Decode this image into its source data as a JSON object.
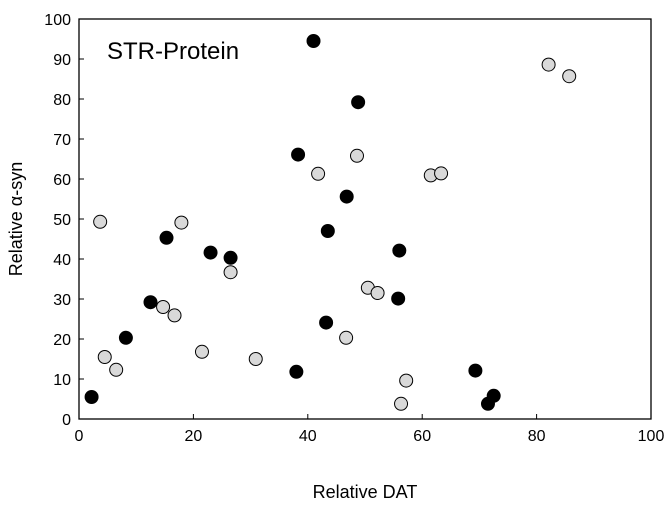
{
  "chart_data": {
    "type": "scatter",
    "title": "",
    "annotation": "STR-Protein",
    "xlabel": "Relative DAT",
    "ylabel": "Relative α-syn",
    "xlim": [
      0,
      100
    ],
    "ylim": [
      0,
      100
    ],
    "xticks": [
      "0",
      "20",
      "40",
      "60",
      "80",
      "100"
    ],
    "yticks": [
      "0",
      "10",
      "20",
      "30",
      "40",
      "50",
      "60",
      "70",
      "80",
      "90",
      "100"
    ],
    "grid": false,
    "colors": {
      "series_a": "#000000",
      "series_b": "#d9d9d9",
      "outline": "#000000"
    },
    "series": [
      {
        "points": [
          [
            2.2,
            5.5
          ],
          [
            8.2,
            20.3
          ],
          [
            12.5,
            29.2
          ],
          [
            15.3,
            45.3
          ],
          [
            23.0,
            41.6
          ],
          [
            26.5,
            40.3
          ],
          [
            38.0,
            11.8
          ],
          [
            38.3,
            66.1
          ],
          [
            41.0,
            94.5
          ],
          [
            43.2,
            24.1
          ],
          [
            43.5,
            47.0
          ],
          [
            46.8,
            55.6
          ],
          [
            48.8,
            79.2
          ],
          [
            55.8,
            30.1
          ],
          [
            56.0,
            42.1
          ],
          [
            69.3,
            12.1
          ],
          [
            71.5,
            3.8
          ],
          [
            72.5,
            5.8
          ]
        ]
      },
      {
        "points": [
          [
            3.7,
            49.3
          ],
          [
            4.5,
            15.5
          ],
          [
            6.5,
            12.3
          ],
          [
            14.7,
            28.0
          ],
          [
            16.7,
            25.9
          ],
          [
            17.9,
            49.1
          ],
          [
            21.5,
            16.8
          ],
          [
            26.5,
            36.7
          ],
          [
            30.9,
            15.0
          ],
          [
            41.8,
            61.3
          ],
          [
            46.7,
            20.3
          ],
          [
            48.6,
            65.8
          ],
          [
            50.5,
            32.8
          ],
          [
            52.2,
            31.5
          ],
          [
            56.3,
            3.8
          ],
          [
            57.2,
            9.6
          ],
          [
            61.5,
            60.9
          ],
          [
            63.3,
            61.4
          ],
          [
            82.1,
            88.6
          ],
          [
            85.7,
            85.7
          ]
        ]
      }
    ]
  }
}
